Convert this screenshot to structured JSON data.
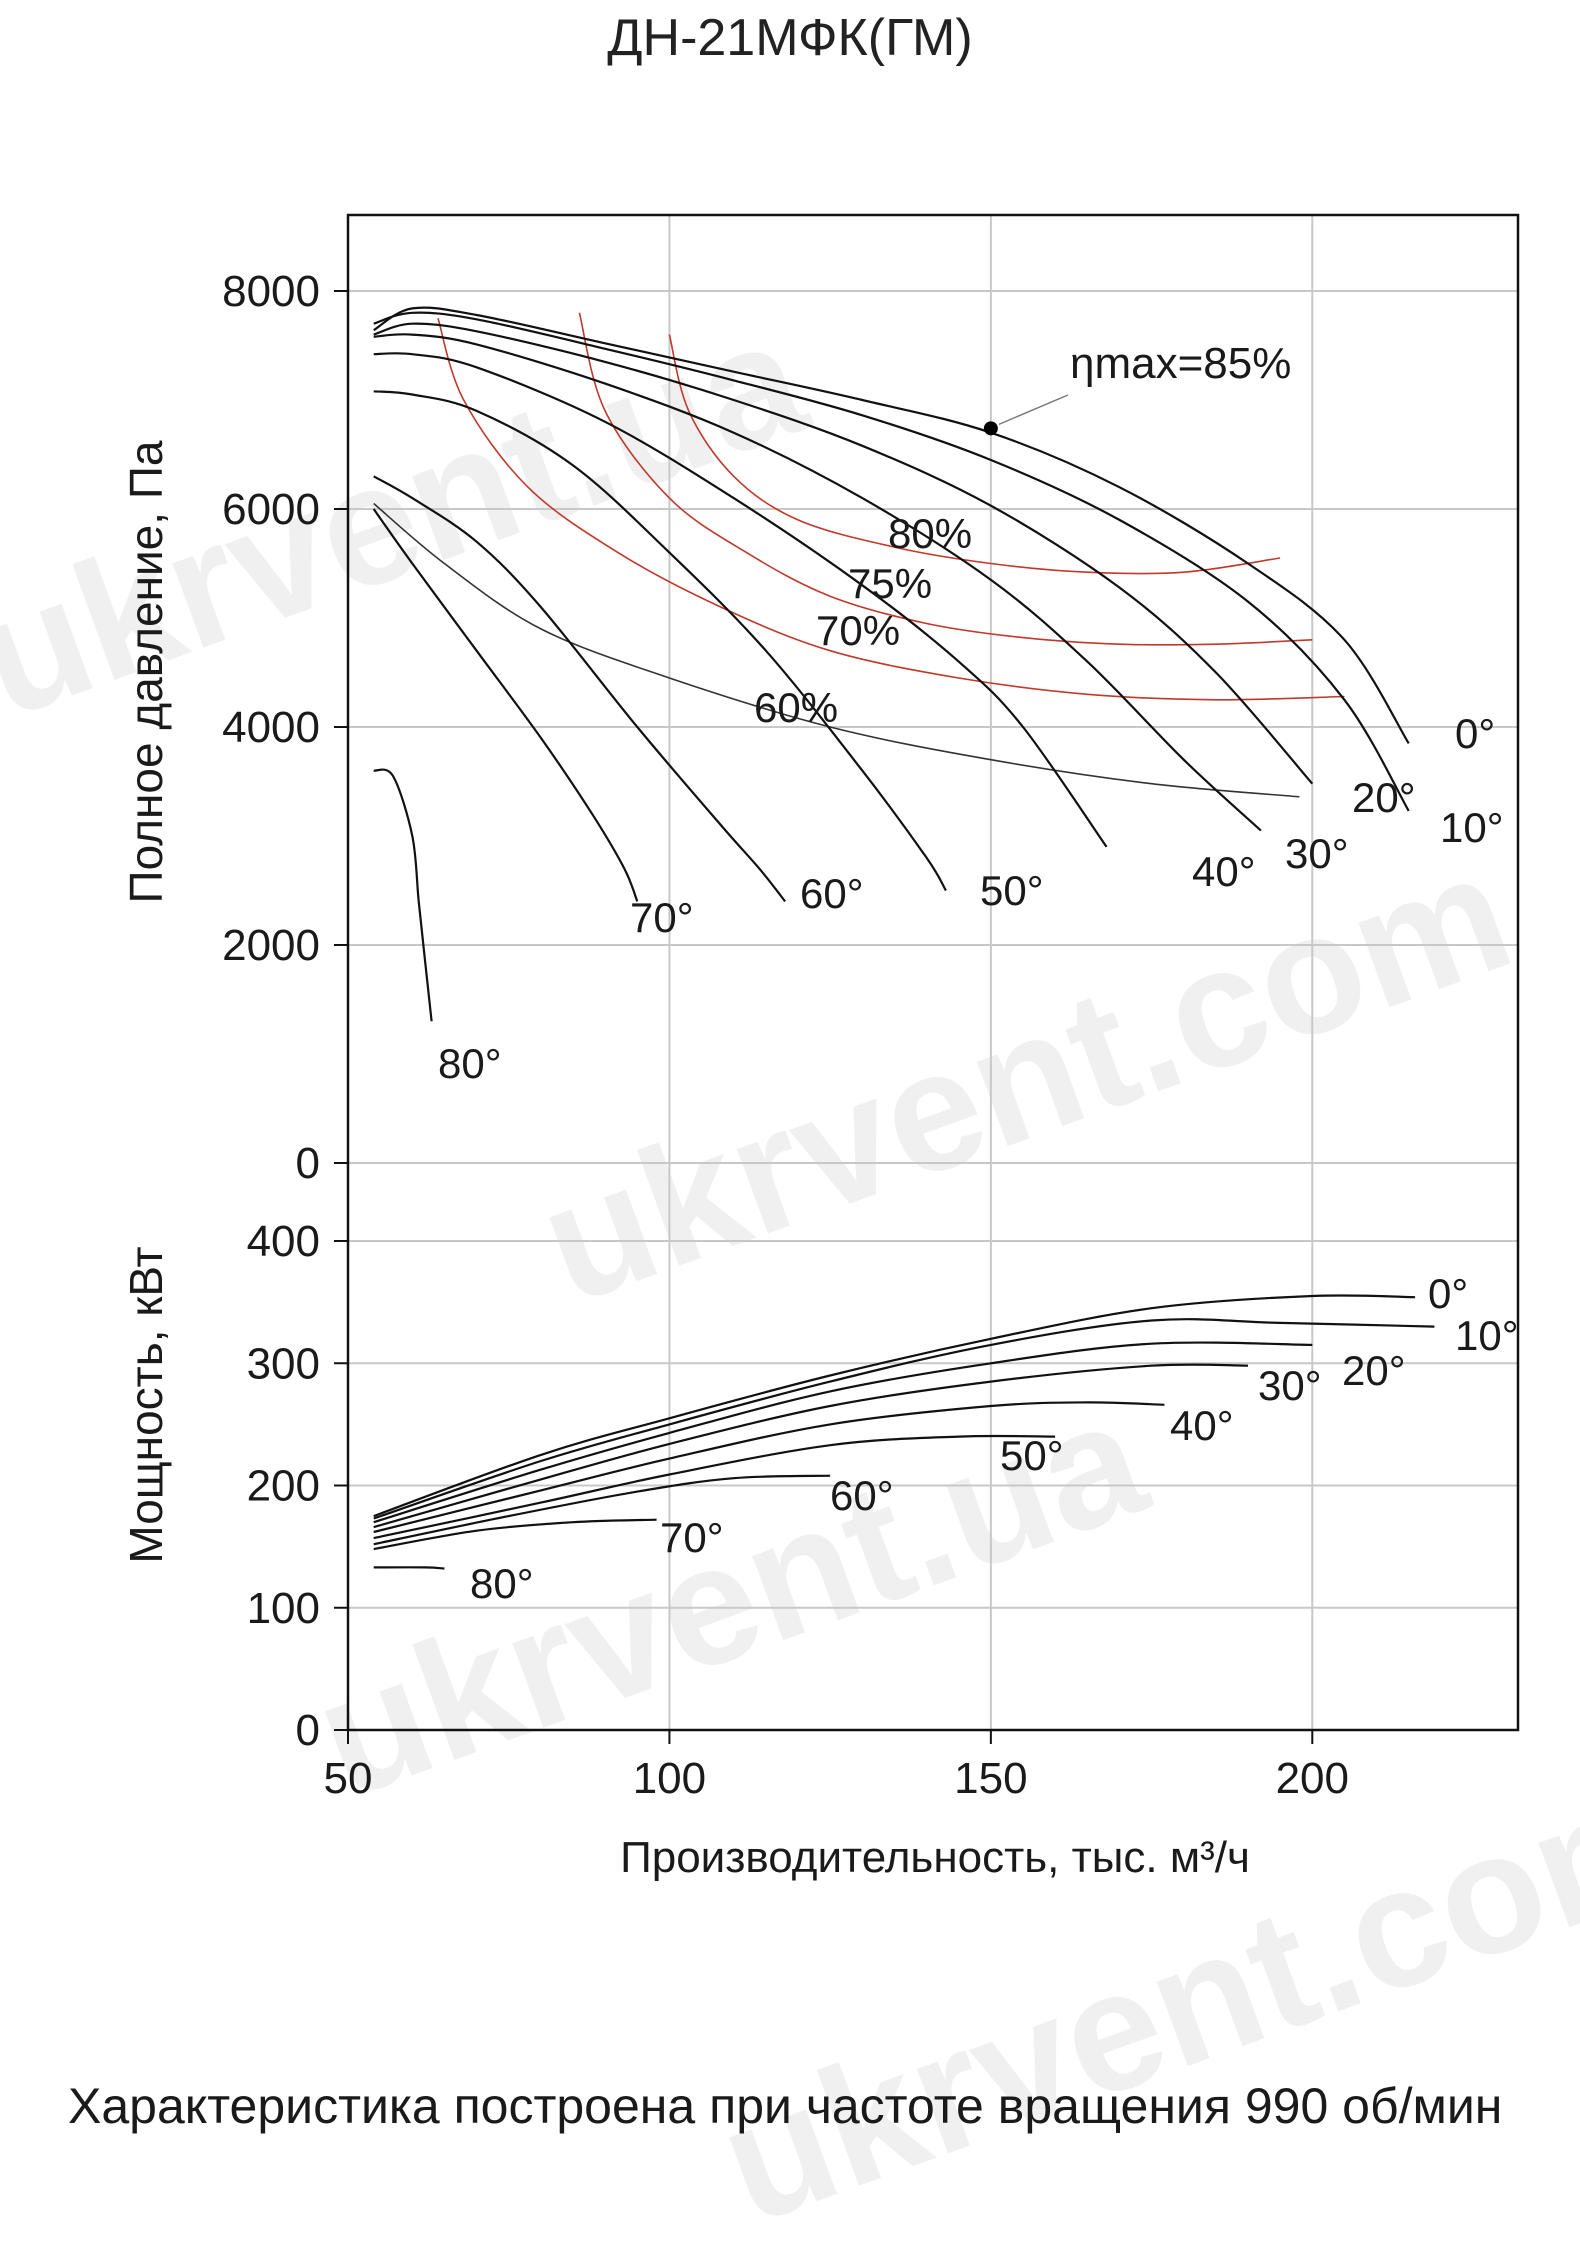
{
  "title": "ДН-21МФК(ГМ)",
  "caption": "Характеристика построена при частоте вращения 990 об/мин",
  "watermark": [
    "ukrvent.ua",
    "ukrvent.com",
    "ukrvent.ua",
    "ukrvent.com"
  ],
  "colors": {
    "curve": "#111111",
    "efficiency": "#c0392b",
    "efficiency60": "#333333",
    "grid": "#c8c8c8",
    "frame": "#111111"
  },
  "chart_data": [
    {
      "type": "line",
      "ylabel": "Полное давление, Па",
      "xlim": [
        50,
        232
      ],
      "ylim": [
        0,
        8700
      ],
      "yticks": [
        0,
        2000,
        4000,
        6000,
        8000
      ],
      "grid": true,
      "series": [
        {
          "name": "0°",
          "points": [
            [
              54,
              7640
            ],
            [
              60,
              7840
            ],
            [
              70,
              7780
            ],
            [
              90,
              7520
            ],
            [
              110,
              7260
            ],
            [
              130,
              7000
            ],
            [
              150,
              6700
            ],
            [
              170,
              6200
            ],
            [
              190,
              5500
            ],
            [
              205,
              4800
            ],
            [
              215,
              3850
            ]
          ]
        },
        {
          "name": "10°",
          "points": [
            [
              54,
              7700
            ],
            [
              60,
              7800
            ],
            [
              70,
              7740
            ],
            [
              90,
              7470
            ],
            [
              110,
              7180
            ],
            [
              130,
              6860
            ],
            [
              150,
              6450
            ],
            [
              170,
              5900
            ],
            [
              190,
              5150
            ],
            [
              205,
              4250
            ],
            [
              215,
              3230
            ]
          ]
        },
        {
          "name": "20°",
          "points": [
            [
              54,
              7600
            ],
            [
              60,
              7700
            ],
            [
              70,
              7630
            ],
            [
              90,
              7350
            ],
            [
              110,
              7000
            ],
            [
              130,
              6580
            ],
            [
              150,
              6030
            ],
            [
              170,
              5280
            ],
            [
              185,
              4500
            ],
            [
              200,
              3480
            ]
          ]
        },
        {
          "name": "30°",
          "points": [
            [
              54,
              7580
            ],
            [
              60,
              7600
            ],
            [
              70,
              7510
            ],
            [
              90,
              7150
            ],
            [
              110,
              6700
            ],
            [
              130,
              6100
            ],
            [
              150,
              5350
            ],
            [
              165,
              4600
            ],
            [
              180,
              3700
            ],
            [
              192,
              3050
            ]
          ]
        },
        {
          "name": "40°",
          "points": [
            [
              54,
              7420
            ],
            [
              60,
              7420
            ],
            [
              70,
              7300
            ],
            [
              90,
              6800
            ],
            [
              110,
              6100
            ],
            [
              130,
              5300
            ],
            [
              145,
              4600
            ],
            [
              155,
              4000
            ],
            [
              168,
              2900
            ]
          ]
        },
        {
          "name": "50°",
          "points": [
            [
              54,
              7080
            ],
            [
              60,
              7050
            ],
            [
              70,
              6900
            ],
            [
              85,
              6400
            ],
            [
              100,
              5600
            ],
            [
              115,
              4700
            ],
            [
              130,
              3600
            ],
            [
              140,
              2800
            ],
            [
              143,
              2500
            ]
          ]
        },
        {
          "name": "60°",
          "points": [
            [
              54,
              6300
            ],
            [
              60,
              6100
            ],
            [
              70,
              5700
            ],
            [
              80,
              5100
            ],
            [
              95,
              4000
            ],
            [
              108,
              3100
            ],
            [
              114,
              2700
            ],
            [
              118,
              2400
            ]
          ]
        },
        {
          "name": "70°",
          "points": [
            [
              54,
              6000
            ],
            [
              60,
              5500
            ],
            [
              70,
              4700
            ],
            [
              80,
              3900
            ],
            [
              88,
              3200
            ],
            [
              93,
              2700
            ],
            [
              95,
              2400
            ]
          ]
        },
        {
          "name": "80°",
          "points": [
            [
              54,
              3600
            ],
            [
              57,
              3550
            ],
            [
              60,
              3000
            ],
            [
              61,
              2400
            ],
            [
              62,
              1850
            ],
            [
              63,
              1300
            ]
          ]
        }
      ],
      "efficiency": [
        {
          "name": "80%",
          "points": [
            [
              100,
              7600
            ],
            [
              103,
              6900
            ],
            [
              110,
              6300
            ],
            [
              120,
              5900
            ],
            [
              135,
              5650
            ],
            [
              150,
              5500
            ],
            [
              165,
              5420
            ],
            [
              180,
              5420
            ],
            [
              195,
              5550
            ]
          ]
        },
        {
          "name": "75%",
          "points": [
            [
              86,
              7800
            ],
            [
              90,
              6900
            ],
            [
              100,
              6100
            ],
            [
              112,
              5600
            ],
            [
              125,
              5200
            ],
            [
              140,
              4950
            ],
            [
              155,
              4820
            ],
            [
              170,
              4760
            ],
            [
              185,
              4760
            ],
            [
              200,
              4800
            ]
          ]
        },
        {
          "name": "70%",
          "points": [
            [
              64,
              7750
            ],
            [
              68,
              7000
            ],
            [
              78,
              6200
            ],
            [
              92,
              5600
            ],
            [
              108,
              5100
            ],
            [
              125,
              4700
            ],
            [
              145,
              4450
            ],
            [
              165,
              4300
            ],
            [
              185,
              4250
            ],
            [
              205,
              4280
            ]
          ]
        },
        {
          "name": "60%",
          "points": [
            [
              54,
              6050
            ],
            [
              65,
              5500
            ],
            [
              80,
              4900
            ],
            [
              100,
              4450
            ],
            [
              125,
              4000
            ],
            [
              150,
              3700
            ],
            [
              175,
              3480
            ],
            [
              198,
              3360
            ]
          ]
        }
      ],
      "annotations": [
        {
          "text": "ηmax=85%",
          "x": 150,
          "y": 6740
        }
      ]
    },
    {
      "type": "line",
      "xlabel": "Производительность, тыс. м³/ч",
      "ylabel": "Мощность, кВт",
      "xlim": [
        50,
        232
      ],
      "ylim": [
        0,
        420
      ],
      "xticks": [
        50,
        100,
        150,
        200
      ],
      "yticks": [
        0,
        100,
        200,
        300,
        400
      ],
      "grid": true,
      "series": [
        {
          "name": "0°",
          "points": [
            [
              54,
              175
            ],
            [
              80,
              225
            ],
            [
              100,
              255
            ],
            [
              125,
              290
            ],
            [
              150,
              320
            ],
            [
              175,
              345
            ],
            [
              200,
              355
            ],
            [
              216,
              354
            ]
          ]
        },
        {
          "name": "10°",
          "points": [
            [
              54,
              173
            ],
            [
              80,
              220
            ],
            [
              100,
              250
            ],
            [
              125,
              285
            ],
            [
              150,
              315
            ],
            [
              175,
              335
            ],
            [
              195,
              333
            ],
            [
              219,
              330
            ]
          ]
        },
        {
          "name": "20°",
          "points": [
            [
              54,
              170
            ],
            [
              80,
              213
            ],
            [
              100,
              243
            ],
            [
              125,
              277
            ],
            [
              150,
              300
            ],
            [
              175,
              316
            ],
            [
              200,
              315
            ]
          ]
        },
        {
          "name": "30°",
          "points": [
            [
              54,
              166
            ],
            [
              80,
              205
            ],
            [
              100,
              234
            ],
            [
              125,
              265
            ],
            [
              150,
              285
            ],
            [
              175,
              298
            ],
            [
              190,
              298
            ]
          ]
        },
        {
          "name": "40°",
          "points": [
            [
              54,
              162
            ],
            [
              80,
              196
            ],
            [
              100,
              222
            ],
            [
              125,
              250
            ],
            [
              150,
              265
            ],
            [
              165,
              268
            ],
            [
              177,
              266
            ]
          ]
        },
        {
          "name": "50°",
          "points": [
            [
              54,
              157
            ],
            [
              80,
              186
            ],
            [
              100,
              209
            ],
            [
              125,
              233
            ],
            [
              145,
              240
            ],
            [
              160,
              240
            ]
          ]
        },
        {
          "name": "60°",
          "points": [
            [
              54,
              152
            ],
            [
              75,
              175
            ],
            [
              95,
              195
            ],
            [
              110,
              206
            ],
            [
              125,
              208
            ]
          ]
        },
        {
          "name": "70°",
          "points": [
            [
              54,
              148
            ],
            [
              70,
              163
            ],
            [
              85,
              170
            ],
            [
              98,
              172
            ]
          ]
        },
        {
          "name": "80°",
          "points": [
            [
              54,
              133
            ],
            [
              62,
              133
            ],
            [
              65,
              132
            ]
          ]
        }
      ]
    }
  ]
}
